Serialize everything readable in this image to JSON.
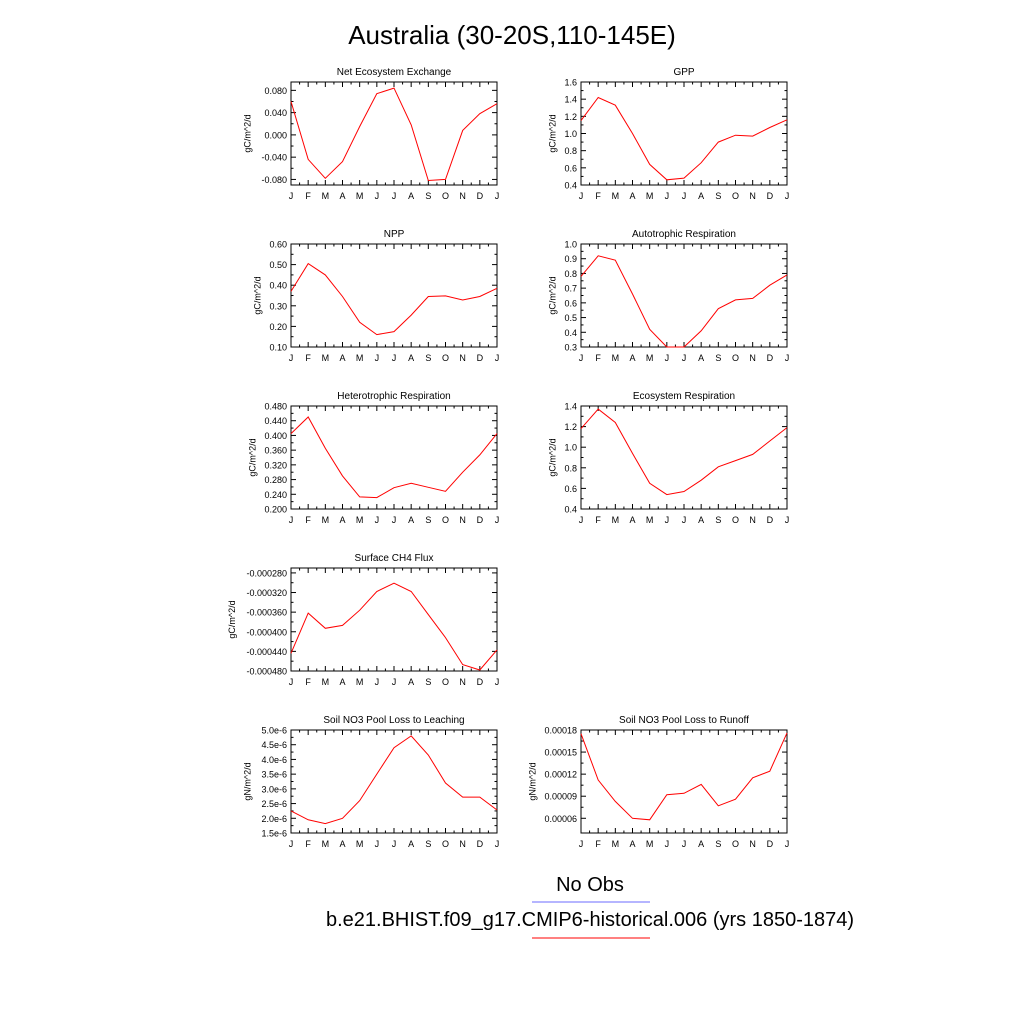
{
  "title": "Australia (30-20S,110-145E)",
  "months": [
    "J",
    "F",
    "M",
    "A",
    "M",
    "J",
    "J",
    "A",
    "S",
    "O",
    "N",
    "D",
    "J"
  ],
  "colors": {
    "model_line": "#ff0000",
    "obs_line": "#6b6bff",
    "axes": "#000000"
  },
  "legend": {
    "obs_label": "No Obs",
    "model_label": "b.e21.BHIST.f09_g17.CMIP6-historical.006 (yrs 1850-1874)"
  },
  "chart_data": [
    {
      "type": "line",
      "title": "Net Ecosystem Exchange",
      "ylabel": "gC/m^2/d",
      "x": [
        "J",
        "F",
        "M",
        "A",
        "M",
        "J",
        "J",
        "A",
        "S",
        "O",
        "N",
        "D",
        "J"
      ],
      "ylim": [
        -0.09,
        0.095
      ],
      "yticks": [
        -0.08,
        -0.04,
        0.0,
        0.04,
        0.08
      ],
      "ytick_labels": [
        "-0.080",
        "-0.040",
        "0.000",
        "0.040",
        "0.080"
      ],
      "series": [
        {
          "values": [
            0.06,
            -0.044,
            -0.078,
            -0.048,
            0.015,
            0.074,
            0.084,
            0.018,
            -0.082,
            -0.08,
            0.008,
            0.038,
            0.056
          ]
        }
      ]
    },
    {
      "type": "line",
      "title": "GPP",
      "ylabel": "gC/m^2/d",
      "x": [
        "J",
        "F",
        "M",
        "A",
        "M",
        "J",
        "J",
        "A",
        "S",
        "O",
        "N",
        "D",
        "J"
      ],
      "ylim": [
        0.4,
        1.6
      ],
      "yticks": [
        0.4,
        0.6,
        0.8,
        1.0,
        1.2,
        1.4,
        1.6
      ],
      "ytick_labels": [
        "0.4",
        "0.6",
        "0.8",
        "1.0",
        "1.2",
        "1.4",
        "1.6"
      ],
      "series": [
        {
          "values": [
            1.15,
            1.42,
            1.33,
            1.0,
            0.64,
            0.46,
            0.48,
            0.66,
            0.9,
            0.98,
            0.97,
            1.07,
            1.16
          ]
        }
      ]
    },
    {
      "type": "line",
      "title": "NPP",
      "ylabel": "gC/m^2/d",
      "x": [
        "J",
        "F",
        "M",
        "A",
        "M",
        "J",
        "J",
        "A",
        "S",
        "O",
        "N",
        "D",
        "J"
      ],
      "ylim": [
        0.1,
        0.6
      ],
      "yticks": [
        0.1,
        0.2,
        0.3,
        0.4,
        0.5,
        0.6
      ],
      "ytick_labels": [
        "0.10",
        "0.20",
        "0.30",
        "0.40",
        "0.50",
        "0.60"
      ],
      "series": [
        {
          "values": [
            0.37,
            0.505,
            0.45,
            0.345,
            0.22,
            0.16,
            0.175,
            0.255,
            0.345,
            0.348,
            0.328,
            0.345,
            0.385
          ]
        }
      ]
    },
    {
      "type": "line",
      "title": "Autotrophic Respiration",
      "ylabel": "gC/m^2/d",
      "x": [
        "J",
        "F",
        "M",
        "A",
        "M",
        "J",
        "J",
        "A",
        "S",
        "O",
        "N",
        "D",
        "J"
      ],
      "ylim": [
        0.3,
        1.0
      ],
      "yticks": [
        0.3,
        0.4,
        0.5,
        0.6,
        0.7,
        0.8,
        0.9,
        1.0
      ],
      "ytick_labels": [
        "0.3",
        "0.4",
        "0.5",
        "0.6",
        "0.7",
        "0.8",
        "0.9",
        "1.0"
      ],
      "series": [
        {
          "values": [
            0.78,
            0.92,
            0.89,
            0.66,
            0.42,
            0.3,
            0.3,
            0.41,
            0.56,
            0.62,
            0.63,
            0.72,
            0.79
          ]
        }
      ]
    },
    {
      "type": "line",
      "title": "Heterotrophic Respiration",
      "ylabel": "gC/m^2/d",
      "x": [
        "J",
        "F",
        "M",
        "A",
        "M",
        "J",
        "J",
        "A",
        "S",
        "O",
        "N",
        "D",
        "J"
      ],
      "ylim": [
        0.2,
        0.48
      ],
      "yticks": [
        0.2,
        0.24,
        0.28,
        0.32,
        0.36,
        0.4,
        0.44,
        0.48
      ],
      "ytick_labels": [
        "0.200",
        "0.240",
        "0.280",
        "0.320",
        "0.360",
        "0.400",
        "0.440",
        "0.480"
      ],
      "series": [
        {
          "values": [
            0.405,
            0.45,
            0.365,
            0.29,
            0.233,
            0.231,
            0.258,
            0.27,
            0.259,
            0.248,
            0.3,
            0.347,
            0.405
          ]
        }
      ]
    },
    {
      "type": "line",
      "title": "Ecosystem Respiration",
      "ylabel": "gC/m^2/d",
      "x": [
        "J",
        "F",
        "M",
        "A",
        "M",
        "J",
        "J",
        "A",
        "S",
        "O",
        "N",
        "D",
        "J"
      ],
      "ylim": [
        0.4,
        1.4
      ],
      "yticks": [
        0.4,
        0.6,
        0.8,
        1.0,
        1.2,
        1.4
      ],
      "ytick_labels": [
        "0.4",
        "0.6",
        "0.8",
        "1.0",
        "1.2",
        "1.4"
      ],
      "series": [
        {
          "values": [
            1.18,
            1.37,
            1.24,
            0.94,
            0.65,
            0.54,
            0.57,
            0.68,
            0.81,
            0.87,
            0.93,
            1.06,
            1.19
          ]
        }
      ]
    },
    {
      "type": "line",
      "title": "Surface CH4 Flux",
      "ylabel": "gC/m^2/d",
      "x": [
        "J",
        "F",
        "M",
        "A",
        "M",
        "J",
        "J",
        "A",
        "S",
        "O",
        "N",
        "D",
        "J"
      ],
      "ylim": [
        -0.00048,
        -0.00027
      ],
      "yticks": [
        -0.00048,
        -0.00044,
        -0.0004,
        -0.00036,
        -0.00032,
        -0.00028
      ],
      "ytick_labels": [
        "-0.000480",
        "-0.000440",
        "-0.000400",
        "-0.000360",
        "-0.000320",
        "-0.000280"
      ],
      "series": [
        {
          "values": [
            -0.000444,
            -0.000362,
            -0.000393,
            -0.000387,
            -0.000356,
            -0.000318,
            -0.000301,
            -0.000318,
            -0.000365,
            -0.000412,
            -0.000467,
            -0.000478,
            -0.000437
          ]
        }
      ]
    },
    {
      "type": "line",
      "title": "Soil NO3 Pool Loss to Leaching",
      "ylabel": "gN/m^2/d",
      "x": [
        "J",
        "F",
        "M",
        "A",
        "M",
        "J",
        "J",
        "A",
        "S",
        "O",
        "N",
        "D",
        "J"
      ],
      "ylim": [
        1.5e-06,
        5e-06
      ],
      "yticks": [
        1.5e-06,
        2e-06,
        2.5e-06,
        3e-06,
        3.5e-06,
        4e-06,
        4.5e-06,
        5e-06
      ],
      "ytick_labels": [
        "1.5e-6",
        "2.0e-6",
        "2.5e-6",
        "3.0e-6",
        "3.5e-6",
        "4.0e-6",
        "4.5e-6",
        "5.0e-6"
      ],
      "series": [
        {
          "values": [
            2.25e-06,
            1.95e-06,
            1.82e-06,
            2e-06,
            2.6e-06,
            3.5e-06,
            4.4e-06,
            4.8e-06,
            4.15e-06,
            3.2e-06,
            2.72e-06,
            2.72e-06,
            2.28e-06
          ]
        }
      ]
    },
    {
      "type": "line",
      "title": "Soil NO3 Pool Loss to Runoff",
      "ylabel": "gN/m^2/d",
      "x": [
        "J",
        "F",
        "M",
        "A",
        "M",
        "J",
        "J",
        "A",
        "S",
        "O",
        "N",
        "D",
        "J"
      ],
      "ylim": [
        4e-05,
        0.00018
      ],
      "yticks": [
        6e-05,
        9e-05,
        0.00012,
        0.00015,
        0.00018
      ],
      "ytick_labels": [
        "0.00006",
        "0.00009",
        "0.00012",
        "0.00015",
        "0.00018"
      ],
      "series": [
        {
          "values": [
            0.000175,
            0.000112,
            8.3e-05,
            6e-05,
            5.8e-05,
            9.2e-05,
            9.4e-05,
            0.000106,
            7.7e-05,
            8.6e-05,
            0.000115,
            0.000124,
            0.000176
          ]
        }
      ]
    }
  ]
}
